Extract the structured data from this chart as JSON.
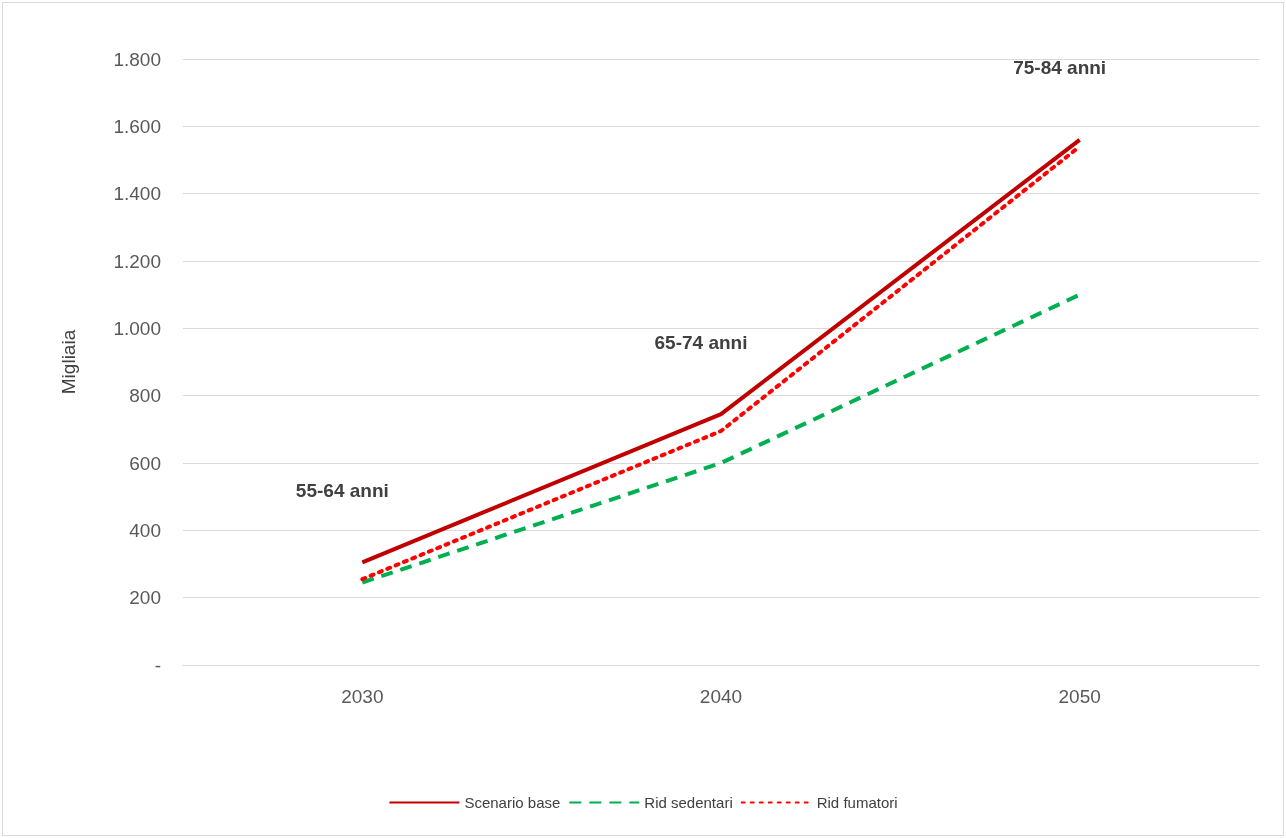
{
  "chart_data": {
    "type": "line",
    "ylabel": "Migliaia",
    "categories": [
      "2030",
      "2040",
      "2050"
    ],
    "series": [
      {
        "name": "Scenario base",
        "color": "#c00000",
        "line_style": "solid",
        "values": [
          305,
          745,
          1560
        ]
      },
      {
        "name": "Rid sedentari",
        "color": "#00b050",
        "line_style": "dashed",
        "values": [
          245,
          600,
          1100
        ]
      },
      {
        "name": "Rid fumatori",
        "color": "#ff0000",
        "line_style": "dotted",
        "values": [
          255,
          695,
          1540
        ]
      }
    ],
    "ylim": [
      0,
      1800
    ],
    "yticks": [
      {
        "value": 0,
        "label": "-"
      },
      {
        "value": 200,
        "label": "200"
      },
      {
        "value": 400,
        "label": "400"
      },
      {
        "value": 600,
        "label": "600"
      },
      {
        "value": 800,
        "label": "800"
      },
      {
        "value": 1000,
        "label": "1.000"
      },
      {
        "value": 1200,
        "label": "1.200"
      },
      {
        "value": 1400,
        "label": "1.400"
      },
      {
        "value": 1600,
        "label": "1.600"
      },
      {
        "value": 1800,
        "label": "1.800"
      }
    ],
    "annotations": [
      "55-64 anni",
      "65-74 anni",
      "75-84 anni"
    ],
    "grid": "y",
    "legend": "bottom",
    "marker": "none"
  }
}
